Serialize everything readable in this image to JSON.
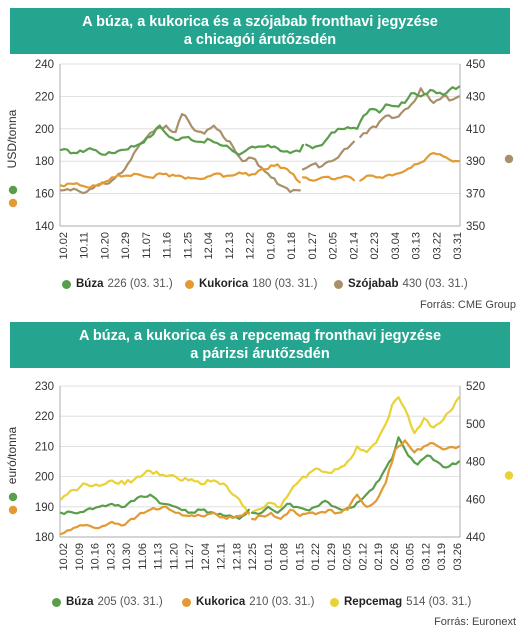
{
  "chart_data": [
    {
      "type": "line",
      "title_line1": "A búza, a kukorica és a szójabab fronthavi jegyzése",
      "title_line2": "a chicagói árutőzsdén",
      "ylabel": "USD/tonna",
      "ylim": [
        140,
        240
      ],
      "yticks": [
        140,
        160,
        180,
        200,
        220,
        240
      ],
      "y2lim": [
        350,
        450
      ],
      "y2ticks": [
        350,
        370,
        390,
        410,
        430,
        450
      ],
      "xtick_labels": [
        "10.02",
        "10.11",
        "10.20",
        "10.29",
        "11.07",
        "11.16",
        "11.25",
        "12.04",
        "12.13",
        "12.22",
        "01.09",
        "01.18",
        "01.27",
        "02.05",
        "02.14",
        "02.23",
        "03.04",
        "03.13",
        "03.22",
        "03.31"
      ],
      "x_count": 126,
      "series": [
        {
          "name": "Búza",
          "axis": "left",
          "color": "#5a9e4b",
          "last": "226",
          "date": "(03. 31.)",
          "anchors": [
            [
              0,
              187
            ],
            [
              5,
              185
            ],
            [
              9,
              188
            ],
            [
              14,
              184
            ],
            [
              19,
              187
            ],
            [
              24,
              190
            ],
            [
              28,
              195
            ],
            [
              31,
              202
            ],
            [
              33,
              197
            ],
            [
              36,
              193
            ],
            [
              40,
              195
            ],
            [
              43,
              192
            ],
            [
              47,
              193
            ],
            [
              50,
              190
            ],
            [
              53,
              188
            ],
            [
              56,
              184
            ],
            [
              59,
              188
            ],
            [
              62,
              189
            ],
            [
              65,
              190
            ],
            [
              68,
              188
            ],
            [
              72,
              185
            ],
            [
              75,
              186
            ],
            [
              76,
              190
            ],
            [
              79,
              188
            ],
            [
              82,
              190
            ],
            [
              84,
              195
            ],
            [
              87,
              200
            ],
            [
              90,
              201
            ],
            [
              93,
              200
            ],
            [
              95,
              208
            ],
            [
              97,
              212
            ],
            [
              100,
              210
            ],
            [
              102,
              215
            ],
            [
              105,
              214
            ],
            [
              108,
              216
            ],
            [
              110,
              222
            ],
            [
              113,
              220
            ],
            [
              116,
              224
            ],
            [
              118,
              222
            ],
            [
              120,
              221
            ],
            [
              122,
              224
            ],
            [
              125,
              226
            ]
          ],
          "gaps": [
            [
              76,
              77
            ]
          ]
        },
        {
          "name": "Kukorica",
          "axis": "left",
          "color": "#e39a33",
          "last": "180",
          "date": "(03. 31.)",
          "anchors": [
            [
              0,
              165
            ],
            [
              4,
              166
            ],
            [
              8,
              164
            ],
            [
              12,
              166
            ],
            [
              16,
              170
            ],
            [
              20,
              171
            ],
            [
              24,
              172
            ],
            [
              28,
              170
            ],
            [
              32,
              172
            ],
            [
              36,
              171
            ],
            [
              40,
              170
            ],
            [
              44,
              169
            ],
            [
              48,
              172
            ],
            [
              52,
              171
            ],
            [
              56,
              173
            ],
            [
              60,
              172
            ],
            [
              64,
              175
            ],
            [
              68,
              178
            ],
            [
              72,
              173
            ],
            [
              75,
              167
            ],
            [
              76,
              170
            ],
            [
              79,
              168
            ],
            [
              82,
              170
            ],
            [
              85,
              169
            ],
            [
              88,
              170
            ],
            [
              91,
              170
            ],
            [
              94,
              168
            ],
            [
              96,
              171
            ],
            [
              99,
              170
            ],
            [
              102,
              171
            ],
            [
              105,
              172
            ],
            [
              108,
              174
            ],
            [
              111,
              178
            ],
            [
              114,
              180
            ],
            [
              117,
              185
            ],
            [
              120,
              183
            ],
            [
              122,
              181
            ],
            [
              125,
              180
            ]
          ],
          "gaps": [
            [
              75,
              76
            ],
            [
              92,
              94
            ]
          ]
        },
        {
          "name": "Szójabab",
          "axis": "right",
          "color": "#a9906a",
          "last": "430",
          "date": "(03. 31.)",
          "anchors": [
            [
              0,
              372
            ],
            [
              4,
              373
            ],
            [
              8,
              371
            ],
            [
              12,
              375
            ],
            [
              16,
              378
            ],
            [
              20,
              385
            ],
            [
              24,
              398
            ],
            [
              27,
              405
            ],
            [
              30,
              410
            ],
            [
              33,
              412
            ],
            [
              36,
              408
            ],
            [
              38,
              419
            ],
            [
              40,
              415
            ],
            [
              42,
              409
            ],
            [
              45,
              407
            ],
            [
              48,
              412
            ],
            [
              51,
              405
            ],
            [
              54,
              399
            ],
            [
              57,
              390
            ],
            [
              60,
              392
            ],
            [
              63,
              386
            ],
            [
              66,
              380
            ],
            [
              69,
              375
            ],
            [
              72,
              371
            ],
            [
              75,
              372
            ],
            [
              76,
              385
            ],
            [
              79,
              388
            ],
            [
              82,
              387
            ],
            [
              85,
              390
            ],
            [
              88,
              395
            ],
            [
              91,
              400
            ],
            [
              94,
              405
            ],
            [
              97,
              410
            ],
            [
              99,
              411
            ],
            [
              102,
              418
            ],
            [
              105,
              417
            ],
            [
              108,
              422
            ],
            [
              111,
              427
            ],
            [
              113,
              435
            ],
            [
              115,
              431
            ],
            [
              117,
              426
            ],
            [
              120,
              430
            ],
            [
              123,
              428
            ],
            [
              125,
              430
            ]
          ],
          "gaps": [
            [
              75,
              76
            ],
            [
              92,
              94
            ]
          ]
        }
      ],
      "source": "Forrás: CME Group"
    },
    {
      "type": "line",
      "title_line1": "A búza, a kukorica és a repcemag fronthavi jegyzése",
      "title_line2": "a párizsi árutőzsdén",
      "ylabel": "euró/tonna",
      "ylim": [
        180,
        230
      ],
      "yticks": [
        180,
        190,
        200,
        210,
        220,
        230
      ],
      "y2lim": [
        440,
        520
      ],
      "y2ticks": [
        440,
        460,
        480,
        500,
        520
      ],
      "xtick_labels": [
        "10.02",
        "10.09",
        "10.16",
        "10.23",
        "10.30",
        "11.06",
        "11.13",
        "11.20",
        "11.27",
        "12.04",
        "12.11",
        "12.18",
        "12.25",
        "01.01",
        "01.08",
        "01.15",
        "01.22",
        "01.29",
        "02.05",
        "02.12",
        "02.19",
        "02.26",
        "03.05",
        "03.12",
        "03.19",
        "03.26"
      ],
      "x_count": 126,
      "series": [
        {
          "name": "Búza",
          "axis": "left",
          "color": "#5a9e4b",
          "last": "205",
          "date": "(03. 31.)",
          "anchors": [
            [
              0,
              188
            ],
            [
              4,
              188
            ],
            [
              8,
              189
            ],
            [
              12,
              190
            ],
            [
              16,
              191
            ],
            [
              20,
              190
            ],
            [
              24,
              193
            ],
            [
              28,
              194
            ],
            [
              32,
              191
            ],
            [
              36,
              190
            ],
            [
              40,
              188
            ],
            [
              44,
              189
            ],
            [
              48,
              188
            ],
            [
              52,
              187
            ],
            [
              56,
              186
            ],
            [
              59,
              189
            ],
            [
              60,
              188
            ],
            [
              63,
              188
            ],
            [
              65,
              190
            ],
            [
              68,
              188
            ],
            [
              71,
              191
            ],
            [
              74,
              190
            ],
            [
              77,
              189
            ],
            [
              80,
              190
            ],
            [
              83,
              192
            ],
            [
              86,
              190
            ],
            [
              89,
              189
            ],
            [
              92,
              190
            ],
            [
              95,
              193
            ],
            [
              98,
              196
            ],
            [
              101,
              201
            ],
            [
              104,
              206
            ],
            [
              106,
              213
            ],
            [
              109,
              207
            ],
            [
              112,
              204
            ],
            [
              115,
              207
            ],
            [
              118,
              205
            ],
            [
              121,
              203
            ],
            [
              125,
              205
            ]
          ],
          "gaps": [
            [
              59,
              60
            ]
          ]
        },
        {
          "name": "Kukorica",
          "axis": "left",
          "color": "#e39a33",
          "last": "210",
          "date": "(03. 31.)",
          "anchors": [
            [
              0,
              181
            ],
            [
              4,
              183
            ],
            [
              8,
              184
            ],
            [
              12,
              183
            ],
            [
              16,
              185
            ],
            [
              20,
              184
            ],
            [
              24,
              187
            ],
            [
              28,
              189
            ],
            [
              32,
              190
            ],
            [
              36,
              188
            ],
            [
              40,
              187
            ],
            [
              44,
              187
            ],
            [
              48,
              188
            ],
            [
              52,
              186
            ],
            [
              56,
              187
            ],
            [
              59,
              188
            ],
            [
              60,
              186
            ],
            [
              63,
              187
            ],
            [
              66,
              188
            ],
            [
              69,
              186
            ],
            [
              72,
              189
            ],
            [
              75,
              187
            ],
            [
              78,
              188
            ],
            [
              81,
              188
            ],
            [
              84,
              189
            ],
            [
              87,
              188
            ],
            [
              90,
              189
            ],
            [
              93,
              194
            ],
            [
              96,
              190
            ],
            [
              99,
              192
            ],
            [
              102,
              198
            ],
            [
              105,
              209
            ],
            [
              108,
              212
            ],
            [
              111,
              208
            ],
            [
              114,
              210
            ],
            [
              117,
              211
            ],
            [
              120,
              209
            ],
            [
              125,
              210
            ]
          ],
          "gaps": [
            [
              59,
              60
            ]
          ]
        },
        {
          "name": "Repcemag",
          "axis": "right",
          "color": "#e8d236",
          "last": "514",
          "date": "(03. 31.)",
          "anchors": [
            [
              0,
              460
            ],
            [
              4,
              465
            ],
            [
              8,
              468
            ],
            [
              12,
              467
            ],
            [
              16,
              470
            ],
            [
              20,
              468
            ],
            [
              24,
              472
            ],
            [
              28,
              475
            ],
            [
              32,
              473
            ],
            [
              36,
              472
            ],
            [
              40,
              470
            ],
            [
              44,
              468
            ],
            [
              48,
              470
            ],
            [
              52,
              467
            ],
            [
              56,
              460
            ],
            [
              59,
              452
            ],
            [
              60,
              453
            ],
            [
              63,
              455
            ],
            [
              66,
              458
            ],
            [
              69,
              456
            ],
            [
              72,
              464
            ],
            [
              75,
              470
            ],
            [
              78,
              474
            ],
            [
              81,
              476
            ],
            [
              84,
              474
            ],
            [
              87,
              476
            ],
            [
              90,
              480
            ],
            [
              93,
              488
            ],
            [
              96,
              485
            ],
            [
              99,
              490
            ],
            [
              102,
              500
            ],
            [
              104,
              510
            ],
            [
              106,
              514
            ],
            [
              108,
              508
            ],
            [
              111,
              495
            ],
            [
              114,
              503
            ],
            [
              117,
              498
            ],
            [
              120,
              502
            ],
            [
              123,
              508
            ],
            [
              125,
              514
            ]
          ],
          "gaps": [
            [
              59,
              60
            ]
          ]
        }
      ],
      "source": "Forrás: Euronext"
    }
  ]
}
